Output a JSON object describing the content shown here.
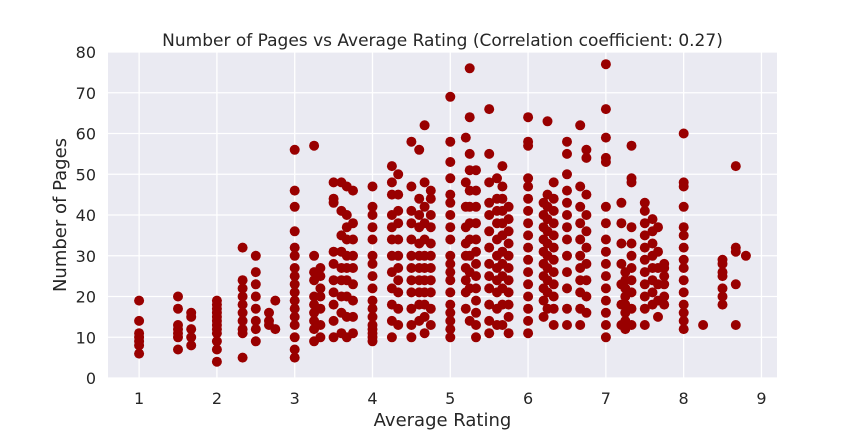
{
  "chart_data": {
    "type": "scatter",
    "title": "Number of Pages vs Average Rating (Correlation coefficient: 0.27)",
    "xlabel": "Average Rating",
    "ylabel": "Number of Pages",
    "xlim": [
      0.6,
      9.2
    ],
    "ylim": [
      0,
      80
    ],
    "xticks": [
      1,
      2,
      3,
      4,
      5,
      6,
      7,
      8,
      9
    ],
    "yticks": [
      0,
      10,
      20,
      30,
      40,
      50,
      60,
      70,
      80
    ],
    "xtick_labels": [
      "1",
      "2",
      "3",
      "4",
      "5",
      "6",
      "7",
      "8",
      "9"
    ],
    "ytick_labels": [
      "0",
      "10",
      "20",
      "30",
      "40",
      "50",
      "60",
      "70",
      "80"
    ],
    "grid": true,
    "background": "#eaeaf2",
    "marker_color": "#990000",
    "x": [
      1,
      1,
      1,
      1,
      1,
      1,
      1,
      1.5,
      1.5,
      1.5,
      1.5,
      1.5,
      1.5,
      1.5,
      1.67,
      1.67,
      1.67,
      1.67,
      1.67,
      2,
      2,
      2,
      2,
      2,
      2,
      2,
      2,
      2,
      2,
      2,
      2,
      2.33,
      2.33,
      2.33,
      2.33,
      2.33,
      2.33,
      2.33,
      2.33,
      2.33,
      2.33,
      2.5,
      2.5,
      2.5,
      2.5,
      2.5,
      2.5,
      2.5,
      2.5,
      2.67,
      2.67,
      2.67,
      2.75,
      2.75,
      3,
      3,
      3,
      3,
      3,
      3,
      3,
      3,
      3,
      3,
      3,
      3,
      3,
      3,
      3,
      3,
      3,
      3.25,
      3.25,
      3.25,
      3.25,
      3.25,
      3.25,
      3.25,
      3.25,
      3.25,
      3.25,
      3.33,
      3.33,
      3.33,
      3.33,
      3.33,
      3.33,
      3.33,
      3.5,
      3.5,
      3.5,
      3.5,
      3.5,
      3.5,
      3.5,
      3.5,
      3.5,
      3.5,
      3.6,
      3.6,
      3.6,
      3.6,
      3.6,
      3.6,
      3.6,
      3.6,
      3.6,
      3.67,
      3.67,
      3.67,
      3.67,
      3.67,
      3.67,
      3.67,
      3.67,
      3.67,
      3.67,
      3.75,
      3.75,
      3.75,
      3.75,
      3.75,
      3.75,
      3.75,
      3.75,
      3.75,
      4,
      4,
      4,
      4,
      4,
      4,
      4,
      4,
      4,
      4,
      4,
      4,
      4,
      4,
      4,
      4,
      4,
      4.25,
      4.25,
      4.25,
      4.25,
      4.25,
      4.25,
      4.25,
      4.25,
      4.25,
      4.25,
      4.25,
      4.25,
      4.33,
      4.33,
      4.33,
      4.33,
      4.33,
      4.33,
      4.33,
      4.33,
      4.33,
      4.33,
      4.33,
      4.5,
      4.5,
      4.5,
      4.5,
      4.5,
      4.5,
      4.5,
      4.5,
      4.5,
      4.5,
      4.5,
      4.5,
      4.6,
      4.6,
      4.6,
      4.6,
      4.6,
      4.6,
      4.6,
      4.6,
      4.6,
      4.6,
      4.6,
      4.67,
      4.67,
      4.67,
      4.67,
      4.67,
      4.67,
      4.67,
      4.67,
      4.67,
      4.67,
      4.67,
      4.67,
      4.75,
      4.75,
      4.75,
      4.75,
      4.75,
      4.75,
      4.75,
      4.75,
      4.75,
      4.75,
      4.75,
      5,
      5,
      5,
      5,
      5,
      5,
      5,
      5,
      5,
      5,
      5,
      5,
      5,
      5,
      5,
      5,
      5,
      5,
      5,
      5.2,
      5.2,
      5.2,
      5.2,
      5.2,
      5.2,
      5.2,
      5.2,
      5.2,
      5.2,
      5.25,
      5.25,
      5.25,
      5.25,
      5.25,
      5.25,
      5.25,
      5.25,
      5.25,
      5.25,
      5.25,
      5.25,
      5.33,
      5.33,
      5.33,
      5.33,
      5.33,
      5.33,
      5.33,
      5.33,
      5.33,
      5.33,
      5.33,
      5.33,
      5.33,
      5.5,
      5.5,
      5.5,
      5.5,
      5.5,
      5.5,
      5.5,
      5.5,
      5.5,
      5.5,
      5.5,
      5.5,
      5.5,
      5.6,
      5.6,
      5.6,
      5.6,
      5.6,
      5.6,
      5.6,
      5.6,
      5.6,
      5.6,
      5.6,
      5.67,
      5.67,
      5.67,
      5.67,
      5.67,
      5.67,
      5.67,
      5.67,
      5.67,
      5.67,
      5.67,
      5.67,
      5.75,
      5.75,
      5.75,
      5.75,
      5.75,
      5.75,
      5.75,
      5.75,
      5.75,
      5.75,
      5.75,
      6,
      6,
      6,
      6,
      6,
      6,
      6,
      6,
      6,
      6,
      6,
      6,
      6,
      6,
      6,
      6,
      6,
      6.2,
      6.2,
      6.2,
      6.2,
      6.2,
      6.2,
      6.2,
      6.2,
      6.2,
      6.2,
      6.25,
      6.25,
      6.25,
      6.25,
      6.25,
      6.25,
      6.25,
      6.25,
      6.25,
      6.25,
      6.25,
      6.33,
      6.33,
      6.33,
      6.33,
      6.33,
      6.33,
      6.33,
      6.33,
      6.33,
      6.33,
      6.33,
      6.33,
      6.5,
      6.5,
      6.5,
      6.5,
      6.5,
      6.5,
      6.5,
      6.5,
      6.5,
      6.5,
      6.5,
      6.5,
      6.5,
      6.67,
      6.67,
      6.67,
      6.67,
      6.67,
      6.67,
      6.67,
      6.67,
      6.67,
      6.67,
      6.67,
      6.75,
      6.75,
      6.75,
      6.75,
      6.75,
      6.75,
      6.75,
      6.75,
      6.75,
      6.75,
      7,
      7,
      7,
      7,
      7,
      7,
      7,
      7,
      7,
      7,
      7,
      7,
      7,
      7,
      7,
      7,
      7.2,
      7.2,
      7.2,
      7.2,
      7.2,
      7.2,
      7.2,
      7.25,
      7.25,
      7.25,
      7.25,
      7.25,
      7.25,
      7.25,
      7.25,
      7.33,
      7.33,
      7.33,
      7.33,
      7.33,
      7.33,
      7.33,
      7.33,
      7.33,
      7.33,
      7.33,
      7.5,
      7.5,
      7.5,
      7.5,
      7.5,
      7.5,
      7.5,
      7.5,
      7.5,
      7.5,
      7.5,
      7.6,
      7.6,
      7.6,
      7.6,
      7.6,
      7.6,
      7.6,
      7.6,
      7.67,
      7.67,
      7.67,
      7.67,
      7.67,
      7.67,
      7.75,
      7.75,
      7.75,
      7.75,
      7.75,
      7.75,
      8,
      8,
      8,
      8,
      8,
      8,
      8,
      8,
      8,
      8,
      8,
      8,
      8,
      8,
      8,
      8.25,
      8.5,
      8.5,
      8.5,
      8.5,
      8.5,
      8.5,
      8.5,
      8.67,
      8.67,
      8.67,
      8.67,
      8.67,
      8.8
    ],
    "y": [
      19,
      14,
      11,
      10,
      9,
      8,
      6,
      20,
      17,
      13,
      12,
      11,
      10,
      7,
      16,
      15,
      12,
      10,
      8,
      19,
      18,
      17,
      16,
      15,
      14,
      13,
      12,
      11,
      9,
      7,
      4,
      32,
      24,
      22,
      20,
      18,
      16,
      14,
      12,
      11,
      5,
      30,
      26,
      23,
      20,
      17,
      14,
      12,
      9,
      16,
      14,
      13,
      19,
      12,
      56,
      46,
      42,
      36,
      32,
      30,
      27,
      25,
      23,
      21,
      19,
      17,
      15,
      13,
      10,
      7,
      5,
      57,
      30,
      26,
      24,
      20,
      18,
      16,
      14,
      12,
      9,
      27,
      25,
      22,
      20,
      17,
      13,
      10,
      48,
      44,
      43,
      31,
      28,
      24,
      21,
      18,
      14,
      10,
      48,
      41,
      35,
      31,
      27,
      24,
      20,
      16,
      11,
      47,
      40,
      37,
      34,
      30,
      27,
      24,
      20,
      15,
      10,
      46,
      38,
      34,
      30,
      27,
      23,
      19,
      15,
      11,
      47,
      42,
      40,
      37,
      34,
      30,
      28,
      25,
      22,
      19,
      17,
      15,
      13,
      12,
      11,
      10,
      9,
      52,
      48,
      45,
      40,
      37,
      34,
      30,
      26,
      22,
      18,
      14,
      10,
      50,
      45,
      41,
      38,
      34,
      30,
      27,
      24,
      21,
      17,
      13,
      58,
      47,
      41,
      38,
      34,
      30,
      27,
      24,
      21,
      17,
      13,
      10,
      56,
      44,
      40,
      37,
      33,
      30,
      27,
      24,
      21,
      18,
      14,
      62,
      48,
      42,
      38,
      34,
      30,
      27,
      24,
      21,
      18,
      15,
      11,
      46,
      44,
      40,
      37,
      33,
      30,
      27,
      24,
      21,
      17,
      13,
      69,
      58,
      53,
      49,
      45,
      43,
      40,
      37,
      34,
      30,
      28,
      26,
      24,
      21,
      18,
      16,
      14,
      12,
      10,
      59,
      48,
      42,
      37,
      33,
      30,
      27,
      24,
      21,
      17,
      76,
      64,
      55,
      51,
      46,
      42,
      38,
      34,
      30,
      26,
      22,
      14,
      51,
      46,
      42,
      38,
      34,
      31,
      28,
      25,
      22,
      19,
      16,
      13,
      10,
      66,
      55,
      48,
      43,
      40,
      36,
      32,
      28,
      25,
      22,
      18,
      14,
      11,
      49,
      44,
      41,
      38,
      34,
      30,
      27,
      24,
      21,
      17,
      13,
      52,
      47,
      44,
      41,
      38,
      35,
      31,
      28,
      25,
      22,
      18,
      13,
      42,
      39,
      36,
      33,
      30,
      27,
      24,
      21,
      18,
      15,
      11,
      64,
      58,
      57,
      49,
      47,
      44,
      41,
      38,
      35,
      32,
      29,
      26,
      23,
      20,
      17,
      14,
      11,
      43,
      40,
      37,
      34,
      31,
      28,
      25,
      22,
      19,
      15,
      63,
      45,
      42,
      39,
      36,
      33,
      30,
      27,
      24,
      21,
      17,
      48,
      44,
      41,
      38,
      35,
      32,
      29,
      26,
      23,
      20,
      17,
      13,
      58,
      55,
      50,
      46,
      43,
      40,
      37,
      34,
      30,
      26,
      22,
      17,
      13,
      62,
      47,
      42,
      38,
      34,
      30,
      27,
      24,
      21,
      17,
      13,
      56,
      54,
      45,
      40,
      36,
      32,
      28,
      24,
      20,
      16,
      77,
      66,
      59,
      54,
      53,
      42,
      38,
      34,
      31,
      28,
      25,
      22,
      19,
      16,
      13,
      10,
      43,
      38,
      33,
      28,
      23,
      18,
      13,
      26,
      24,
      22,
      20,
      18,
      16,
      14,
      12,
      57,
      49,
      48,
      37,
      33,
      30,
      27,
      24,
      21,
      17,
      13,
      43,
      41,
      38,
      35,
      32,
      29,
      26,
      23,
      20,
      17,
      13,
      39,
      36,
      33,
      30,
      27,
      24,
      21,
      18,
      37,
      31,
      27,
      23,
      19,
      15,
      28,
      27,
      25,
      23,
      20,
      18,
      60,
      48,
      47,
      42,
      37,
      35,
      32,
      29,
      27,
      24,
      21,
      18,
      16,
      14,
      12,
      13,
      29,
      28,
      26,
      25,
      22,
      20,
      18,
      52,
      32,
      31,
      23,
      13,
      30
    ]
  }
}
